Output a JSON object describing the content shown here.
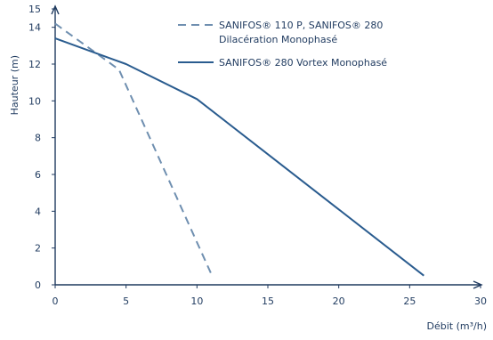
{
  "chart_data": {
    "type": "line",
    "xlabel": "Débit (m³/h)",
    "ylabel": "Hauteur (m)",
    "xlim": [
      0,
      30
    ],
    "ylim": [
      0,
      15
    ],
    "xticks": [
      "0",
      "5",
      "10",
      "15",
      "20",
      "25",
      "30"
    ],
    "yticks": [
      "0",
      "2",
      "4",
      "6",
      "8",
      "10",
      "12",
      "14",
      "15"
    ],
    "grid": false,
    "legend_position": "top-right",
    "series": [
      {
        "name": "SANIFOS® 110 P, SANIFOS® 280 Dilacération Monophasé",
        "line_style": "dashed",
        "color": "#6f8fb0",
        "x": [
          0,
          4.5,
          11
        ],
        "y": [
          14.2,
          11.7,
          0.6
        ]
      },
      {
        "name": "SANIFOS® 280 Vortex Monophasé",
        "line_style": "solid",
        "color": "#2a5c8f",
        "x": [
          0,
          5,
          10,
          15,
          20,
          26
        ],
        "y": [
          13.4,
          12,
          10.1,
          7.1,
          4.1,
          0.5
        ]
      }
    ],
    "legend": {
      "entries": [
        {
          "lines": [
            "SANIFOS® 110 P, SANIFOS® 280",
            "Dilacération Monophasé"
          ],
          "style": "dashed"
        },
        {
          "lines": [
            "SANIFOS® 280 Vortex Monophasé"
          ],
          "style": "solid"
        }
      ]
    }
  },
  "colors": {
    "axis": "#1f3a5f",
    "dashed": "#6f8fb0",
    "solid": "#2a5c8f"
  }
}
